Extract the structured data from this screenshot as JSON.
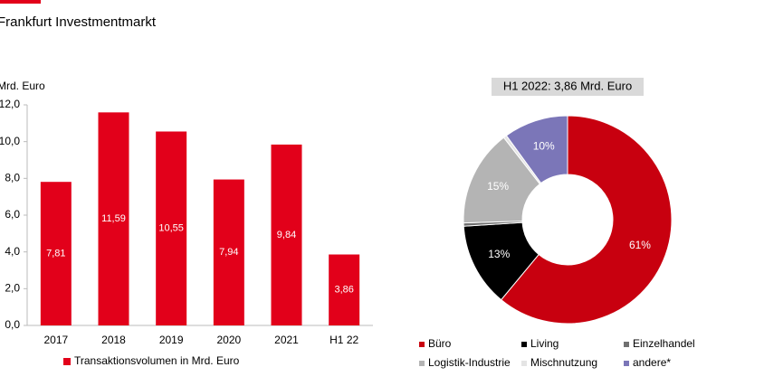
{
  "title": "Frankfurt Investmentmarkt",
  "chart_data": [
    {
      "type": "bar",
      "y_label": "Mrd. Euro",
      "categories": [
        "2017",
        "2018",
        "2019",
        "2020",
        "2021",
        "H1 22"
      ],
      "series": [
        {
          "name": "Transaktionsvolumen in Mrd. Euro",
          "color": "#e2001a",
          "values": [
            7.81,
            11.59,
            10.55,
            7.94,
            9.84,
            3.86
          ],
          "value_labels": [
            "7,81",
            "11,59",
            "10,55",
            "7,94",
            "9,84",
            "3,86"
          ]
        }
      ],
      "ylim": [
        0,
        12
      ],
      "yticks": [
        {
          "value": 0,
          "label": "0,0"
        },
        {
          "value": 2,
          "label": "2,0"
        },
        {
          "value": 4,
          "label": "4,0"
        },
        {
          "value": 6,
          "label": "6,0"
        },
        {
          "value": 8,
          "label": "8,0"
        },
        {
          "value": 10,
          "label": "10,0"
        },
        {
          "value": 12,
          "label": "12,0"
        }
      ]
    },
    {
      "type": "donut",
      "title": "H1 2022: 3,86 Mrd. Euro",
      "categories": [
        "Büro",
        "Living",
        "Einzelhandel",
        "Logistik-Industrie",
        "Mischnutzung",
        "andere*"
      ],
      "values": [
        61,
        13,
        0.5,
        15,
        0.5,
        10
      ],
      "value_labels": [
        "61%",
        "13%",
        null,
        "15%",
        null,
        "10%"
      ],
      "colors": [
        "#c8000f",
        "#000000",
        "#707070",
        "#b4b4b4",
        "#e4e4e4",
        "#7b76b8"
      ]
    }
  ]
}
